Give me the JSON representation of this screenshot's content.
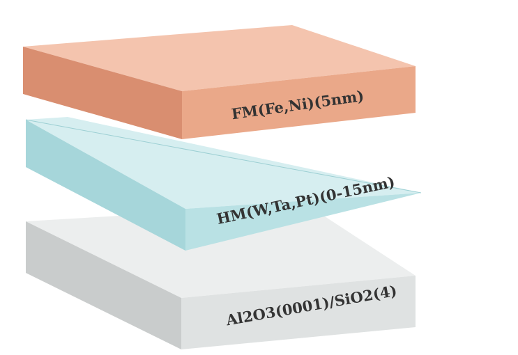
{
  "diagram": {
    "layers": [
      {
        "id": "fm",
        "label": "FM(Fe,Ni)(5nm)",
        "colors": {
          "top": "#f4c4ae",
          "front": "#eaa889",
          "side": "#d98e70"
        }
      },
      {
        "id": "hm",
        "label": "HM(W,Ta,Pt)(0-15nm)",
        "colors": {
          "top": "#d6eef0",
          "front": "#b9e1e4",
          "side": "#a6d6da"
        }
      },
      {
        "id": "substrate",
        "label": "Al2O3(0001)/SiO2(4)",
        "colors": {
          "top": "#eceeee",
          "front": "#dfe2e2",
          "side": "#c9cccc"
        }
      }
    ]
  }
}
